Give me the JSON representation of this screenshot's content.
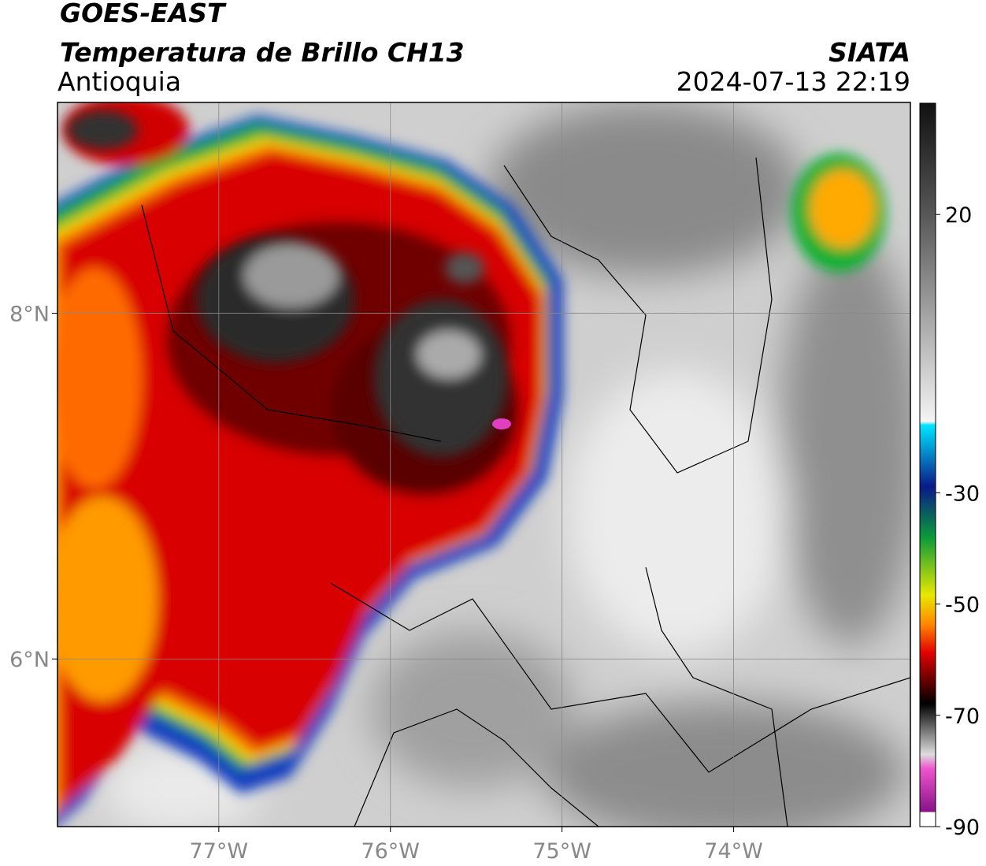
{
  "header": {
    "title": "GOES-EAST",
    "subtitle": "Temperatura de Brillo CH13",
    "region": "Antioquia",
    "source": "SIATA",
    "datetime": "2024-07-13 22:19"
  },
  "map": {
    "lon_range": [
      -77.94,
      -72.97
    ],
    "lat_range": [
      5.03,
      9.22
    ],
    "lon_ticks": [
      {
        "value": -77,
        "label": "77°W"
      },
      {
        "value": -76,
        "label": "76°W"
      },
      {
        "value": -75,
        "label": "75°W"
      },
      {
        "value": -74,
        "label": "74°W"
      }
    ],
    "lat_ticks": [
      {
        "value": 8,
        "label": "8°N"
      },
      {
        "value": 6,
        "label": "6°N"
      }
    ]
  },
  "colorbar": {
    "range": [
      -90,
      40
    ],
    "ticks": [
      20,
      -30,
      -50,
      -70,
      -90
    ]
  }
}
